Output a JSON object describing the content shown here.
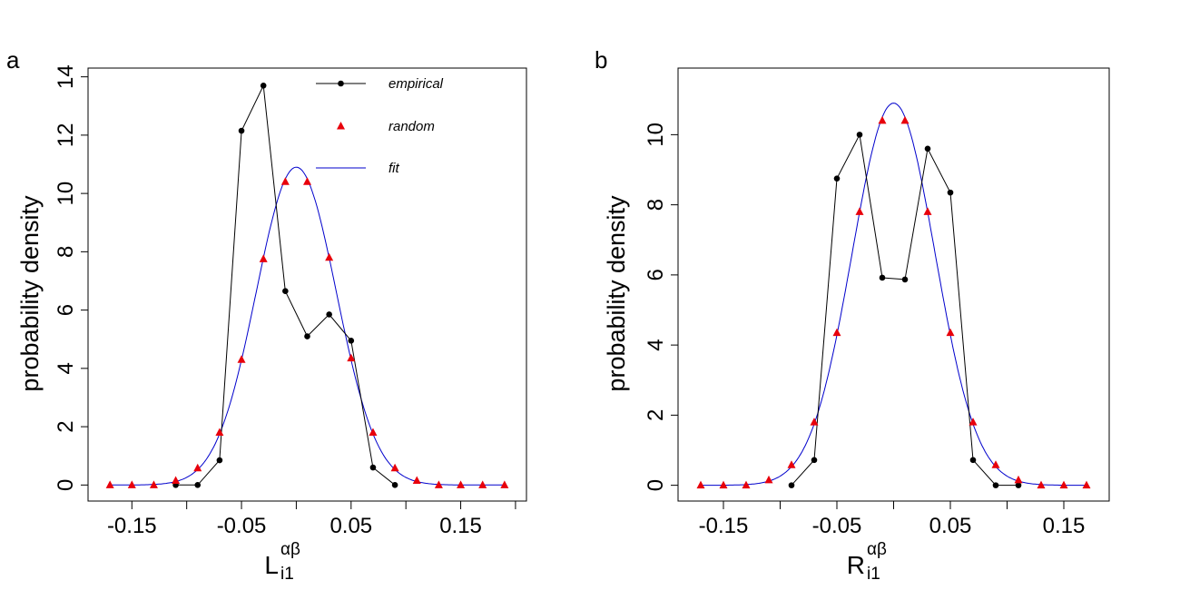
{
  "chart_data": [
    {
      "panel_label": "a",
      "type": "line",
      "xlabel": {
        "main": "L",
        "sub": "i1",
        "sup": "αβ"
      },
      "ylabel": "probability density",
      "xlim": [
        -0.19,
        0.21
      ],
      "ylim": [
        -0.55,
        14.3
      ],
      "xticks": [
        -0.2,
        -0.15,
        -0.1,
        -0.05,
        0,
        0.05,
        0.1,
        0.15,
        0.2
      ],
      "xtick_labels": [
        "-0.15",
        "-0.05",
        "0.05",
        "0.15"
      ],
      "xtick_label_values": [
        -0.15,
        -0.05,
        0.05,
        0.15
      ],
      "yticks": [
        0,
        2,
        4,
        6,
        8,
        10,
        12,
        14
      ],
      "ytick_labels": [
        "0",
        "2",
        "4",
        "6",
        "8",
        "10",
        "12",
        "14"
      ],
      "legend": {
        "position": "top-right",
        "entries": [
          {
            "label": "empirical",
            "series": "empirical"
          },
          {
            "label": "random",
            "series": "random"
          },
          {
            "label": "fit",
            "series": "fit"
          }
        ]
      },
      "series": [
        {
          "name": "empirical",
          "style": "line+points",
          "color": "#000000",
          "x": [
            -0.11,
            -0.09,
            -0.07,
            -0.05,
            -0.03,
            -0.01,
            0.01,
            0.03,
            0.05,
            0.07,
            0.09
          ],
          "y": [
            0,
            0,
            0.85,
            12.15,
            13.7,
            6.65,
            5.1,
            5.85,
            4.95,
            0.6,
            0
          ]
        },
        {
          "name": "random",
          "style": "points",
          "color": "#e8000b",
          "x": [
            -0.17,
            -0.15,
            -0.13,
            -0.11,
            -0.09,
            -0.07,
            -0.05,
            -0.03,
            -0.01,
            0.01,
            0.03,
            0.05,
            0.07,
            0.09,
            0.11,
            0.13,
            0.15,
            0.17,
            0.19
          ],
          "y": [
            0,
            0,
            0,
            0.15,
            0.58,
            1.8,
            4.3,
            7.75,
            10.4,
            10.4,
            7.8,
            4.35,
            1.8,
            0.58,
            0.15,
            0,
            0,
            0,
            0
          ]
        },
        {
          "name": "fit",
          "style": "line",
          "color": "#0000cc",
          "normal": {
            "mean": 0.0,
            "sd": 0.0366,
            "peak": 10.9
          },
          "x_range": [
            -0.17,
            0.19
          ]
        }
      ]
    },
    {
      "panel_label": "b",
      "type": "line",
      "xlabel": {
        "main": "R",
        "sub": "i1",
        "sup": "αβ"
      },
      "ylabel": "probability density",
      "xlim": [
        -0.19,
        0.19
      ],
      "ylim": [
        -0.45,
        11.9
      ],
      "xticks": [
        -0.2,
        -0.15,
        -0.1,
        -0.05,
        0,
        0.05,
        0.1,
        0.15
      ],
      "xtick_labels": [
        "-0.15",
        "-0.05",
        "0.05",
        "0.15"
      ],
      "xtick_label_values": [
        -0.15,
        -0.05,
        0.05,
        0.15
      ],
      "yticks": [
        0,
        2,
        4,
        6,
        8,
        10
      ],
      "ytick_labels": [
        "0",
        "2",
        "4",
        "6",
        "8",
        "10"
      ],
      "series": [
        {
          "name": "empirical",
          "style": "line+points",
          "color": "#000000",
          "x": [
            -0.09,
            -0.07,
            -0.05,
            -0.03,
            -0.01,
            0.01,
            0.03,
            0.05,
            0.07,
            0.09,
            0.11
          ],
          "y": [
            0,
            0.72,
            8.75,
            10,
            5.92,
            5.87,
            9.6,
            8.35,
            0.72,
            0,
            0
          ]
        },
        {
          "name": "random",
          "style": "points",
          "color": "#e8000b",
          "x": [
            -0.17,
            -0.15,
            -0.13,
            -0.11,
            -0.09,
            -0.07,
            -0.05,
            -0.03,
            -0.01,
            0.01,
            0.03,
            0.05,
            0.07,
            0.09,
            0.11,
            0.13,
            0.15,
            0.17
          ],
          "y": [
            0,
            0,
            0,
            0.15,
            0.58,
            1.8,
            4.35,
            7.8,
            10.4,
            10.4,
            7.8,
            4.35,
            1.8,
            0.58,
            0.15,
            0,
            0,
            0
          ]
        },
        {
          "name": "fit",
          "style": "line",
          "color": "#0000cc",
          "normal": {
            "mean": 0.0,
            "sd": 0.0366,
            "peak": 10.9
          },
          "x_range": [
            -0.17,
            0.17
          ]
        }
      ]
    }
  ]
}
